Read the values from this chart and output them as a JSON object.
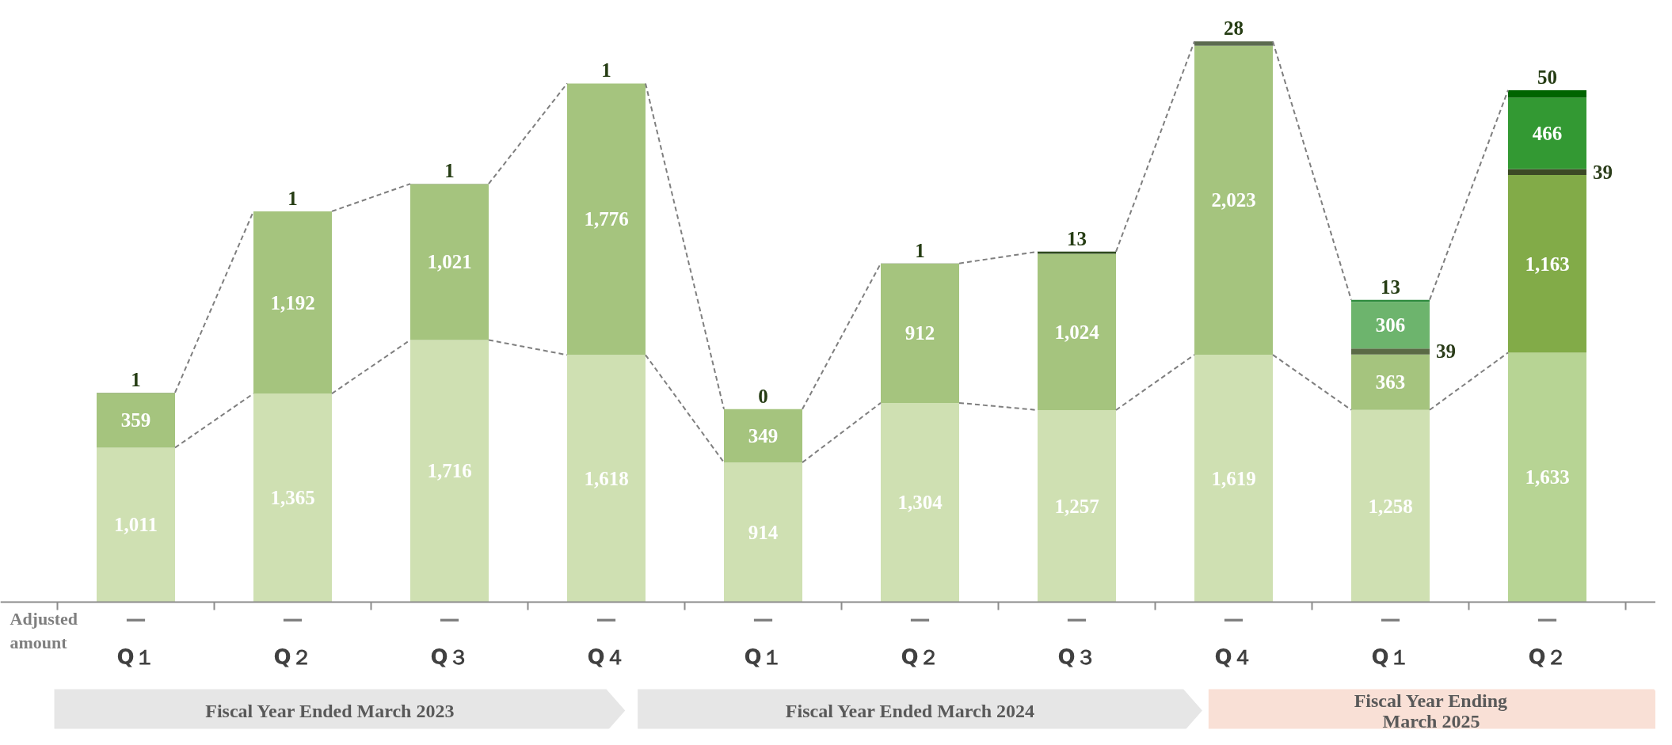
{
  "chart_data": {
    "type": "bar",
    "stacked": true,
    "data_labels": true,
    "tick_labels": "x",
    "categories": [
      "Q１",
      "Q２",
      "Q３",
      "Q４",
      "Q１",
      "Q２",
      "Q３",
      "Q４",
      "Q１",
      "Q２"
    ],
    "series": [
      {
        "colors": [
          "#cfe0b2",
          "#cfe0b2",
          "#cfe0b2",
          "#cfe0b2",
          "#cfe0b2",
          "#cfe0b2",
          "#cfe0b2",
          "#cfe0b2",
          "#cfe0b2",
          "#b7d494"
        ],
        "values": [
          1011,
          1365,
          1716,
          1618,
          914,
          1304,
          1257,
          1619,
          1258,
          1633
        ],
        "value_labels": [
          "1,011",
          "1,365",
          "1,716",
          "1,618",
          "914",
          "1,304",
          "1,257",
          "1,619",
          "1,258",
          "1,633"
        ]
      },
      {
        "colors": [
          "#a5c47e",
          "#a5c47e",
          "#a5c47e",
          "#a5c47e",
          "#a5c47e",
          "#a5c47e",
          "#a5c47e",
          "#a5c47e",
          "#a5c47e",
          "#82ab48"
        ],
        "values": [
          359,
          1192,
          1021,
          1776,
          349,
          912,
          1024,
          2023,
          363,
          1163
        ],
        "value_labels": [
          "359",
          "1,192",
          "1,021",
          "1,776",
          "349",
          "912",
          "1,024",
          "2,023",
          "363",
          "1,163"
        ]
      },
      {
        "colors": [
          "#3b4a25",
          "#3b4a25",
          "#3b4a25",
          "#3b4a25",
          "#3b4a25",
          "#3b4a25",
          "#3b4a25",
          "#3b4a25",
          "#5a6a45",
          "#3b4a25"
        ],
        "values": [
          null,
          null,
          null,
          null,
          null,
          null,
          null,
          null,
          39,
          39
        ]
      },
      {
        "colors": [
          "#6db46d",
          "#6db46d",
          "#6db46d",
          "#6db46d",
          "#6db46d",
          "#6db46d",
          "#6db46d",
          "#6db46d",
          "#6db46d",
          "#339933"
        ],
        "values": [
          null,
          null,
          null,
          null,
          null,
          null,
          null,
          null,
          306,
          466
        ]
      },
      {
        "colors": [
          "#5b6b4f",
          "#5b6b4f",
          "#5b6b4f",
          "#5b6b4f",
          "#5b6b4f",
          "#5b6b4f",
          "#2f4a1e",
          "#5b6b4f",
          "#2e8b3e",
          "#006400"
        ],
        "values": [
          1,
          1,
          1,
          1,
          0,
          1,
          13,
          28,
          13,
          50
        ]
      }
    ],
    "annotations": [
      "Adjusted amount",
      "—",
      "—",
      "—",
      "—",
      "—",
      "—",
      "—",
      "—",
      "—",
      "—",
      "Fiscal Year Ended March 2023",
      "Fiscal Year Ended March 2024",
      "Fiscal Year Ending\nMarch 2025"
    ]
  }
}
